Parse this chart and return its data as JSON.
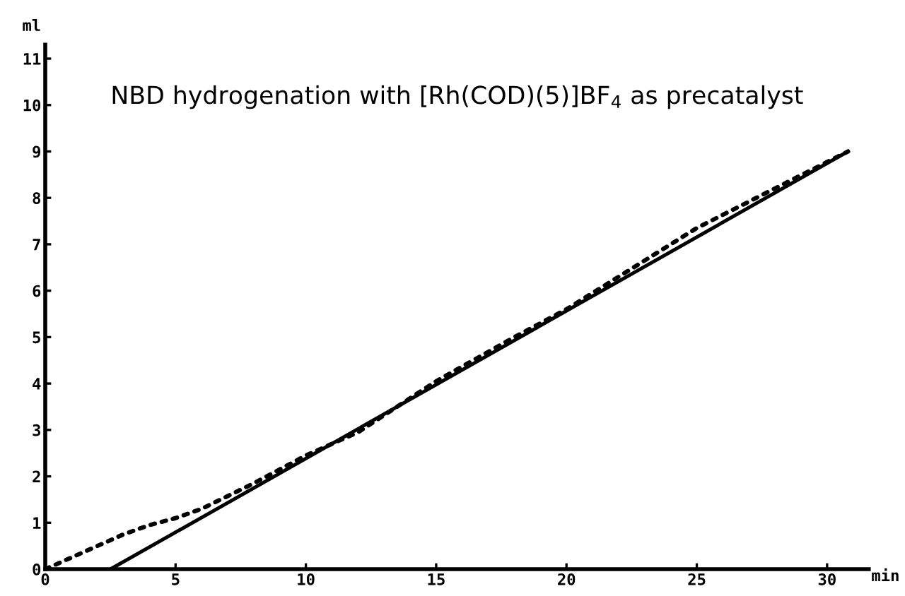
{
  "chart_data": {
    "type": "line",
    "title": "NBD hydrogenation with [Rh(COD)(5)]BF$_{4}$ as precatalyst",
    "xlabel": "min",
    "ylabel": "ml",
    "xlim": [
      0,
      31.6
    ],
    "ylim": [
      0,
      11.3
    ],
    "xticks": [
      0,
      5,
      10,
      15,
      20,
      25,
      30
    ],
    "yticks": [
      0,
      1,
      2,
      3,
      4,
      5,
      6,
      7,
      8,
      9,
      10,
      11
    ],
    "grid": false,
    "legend": false,
    "series": [
      {
        "color": "#000000",
        "line_style": "dotted",
        "x": [
          0,
          1,
          2,
          3,
          4,
          5,
          6,
          8,
          10,
          12,
          15,
          18,
          20,
          25,
          30.8
        ],
        "values": [
          0,
          0.25,
          0.5,
          0.75,
          0.95,
          1.1,
          1.3,
          1.85,
          2.45,
          2.95,
          4.05,
          5.0,
          5.6,
          7.35,
          9.0
        ]
      },
      {
        "color": "#000000",
        "line_style": "solid",
        "x": [
          2.5,
          30.8
        ],
        "values": [
          0,
          9.0
        ]
      }
    ]
  }
}
